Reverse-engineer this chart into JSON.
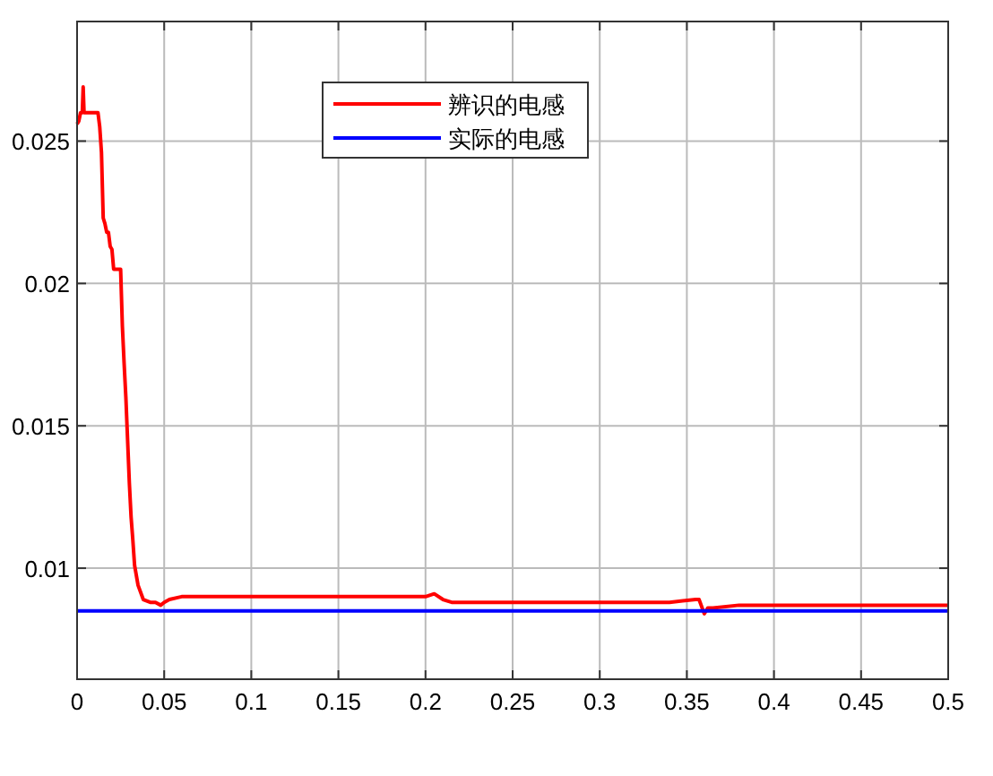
{
  "chart_data": {
    "type": "line",
    "xlim": [
      0,
      0.5
    ],
    "ylim": [
      0.0061,
      0.0292
    ],
    "xticks": [
      0,
      0.05,
      0.1,
      0.15,
      0.2,
      0.25,
      0.3,
      0.35,
      0.4,
      0.45,
      0.5
    ],
    "yticks": [
      0.01,
      0.015,
      0.02,
      0.025
    ],
    "grid": true,
    "legend": "top",
    "line_style": "solid",
    "marker": "none",
    "series": [
      {
        "name": "辨识的电感",
        "color": "#ff0000",
        "x": [
          0,
          0.001,
          0.002,
          0.003,
          0.0035,
          0.004,
          0.008,
          0.012,
          0.013,
          0.014,
          0.015,
          0.016,
          0.017,
          0.018,
          0.019,
          0.02,
          0.021,
          0.022,
          0.024,
          0.025,
          0.026,
          0.027,
          0.028,
          0.029,
          0.03,
          0.031,
          0.032,
          0.033,
          0.035,
          0.038,
          0.042,
          0.045,
          0.048,
          0.05,
          0.053,
          0.06,
          0.08,
          0.1,
          0.12,
          0.15,
          0.18,
          0.2,
          0.205,
          0.21,
          0.215,
          0.25,
          0.3,
          0.34,
          0.355,
          0.357,
          0.36,
          0.362,
          0.365,
          0.38,
          0.4,
          0.45,
          0.5
        ],
        "values": [
          0.0256,
          0.0257,
          0.026,
          0.026,
          0.0269,
          0.026,
          0.026,
          0.026,
          0.0255,
          0.0246,
          0.0223,
          0.0221,
          0.0218,
          0.0218,
          0.0213,
          0.0212,
          0.0205,
          0.0205,
          0.0205,
          0.0205,
          0.0185,
          0.0172,
          0.016,
          0.0145,
          0.013,
          0.0118,
          0.011,
          0.0101,
          0.0094,
          0.0089,
          0.0088,
          0.0088,
          0.0087,
          0.0088,
          0.0089,
          0.009,
          0.009,
          0.009,
          0.009,
          0.009,
          0.009,
          0.009,
          0.0091,
          0.0089,
          0.0088,
          0.0088,
          0.0088,
          0.0088,
          0.0089,
          0.0089,
          0.0084,
          0.0086,
          0.0086,
          0.0087,
          0.0087,
          0.0087,
          0.0087
        ]
      },
      {
        "name": "实际的电感",
        "color": "#0000ff",
        "x": [
          0,
          0.5
        ],
        "values": [
          0.0085,
          0.0085
        ]
      }
    ]
  }
}
